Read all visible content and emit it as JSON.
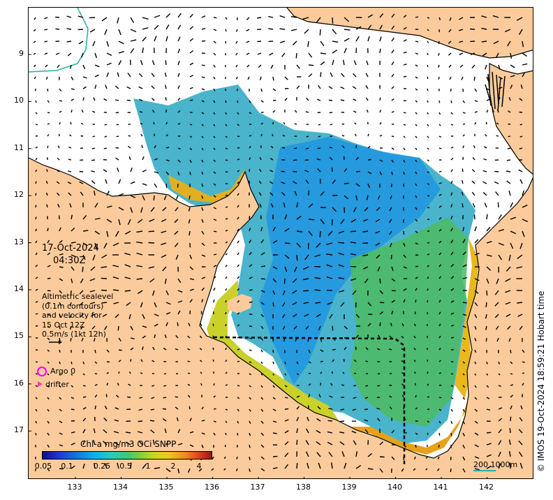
{
  "map": {
    "date": "17-Oct-2024",
    "time": "04:30Z",
    "info_lines": "Altimetric sealevel\n(0.1m contours)\nand velocity for\n15 Oct 12Z\n0.5m/s (1kt 12h)",
    "legend": {
      "argo_label": "Argo 0",
      "drifter_label": "drifter"
    },
    "colorbar": {
      "title": "Chl-a mg/m3 OCi SNPP",
      "tick_labels": [
        "0.05",
        "0.1",
        "0.25",
        "0.5",
        "1",
        "2",
        "4"
      ]
    },
    "scale_text": "200  1000m",
    "credit": "© IMOS 19-Oct-2024 18:59:21 Hobart time",
    "lat_labels": [
      "9",
      "10",
      "11",
      "12",
      "13",
      "14",
      "15",
      "16",
      "17"
    ],
    "lon_labels": [
      "133",
      "134",
      "135",
      "136",
      "137",
      "138",
      "139",
      "140",
      "141",
      "142"
    ],
    "lat_range": [
      -17.9,
      -8.0
    ],
    "lon_range": [
      132.0,
      143.0
    ],
    "colors": {
      "land": "#fbcb9c",
      "coast": "#000000",
      "sea_no_data": "#ffffff",
      "argo": "#ff00ff",
      "drifter": "#ff33cc",
      "depth_contour": "#20b2aa"
    }
  }
}
